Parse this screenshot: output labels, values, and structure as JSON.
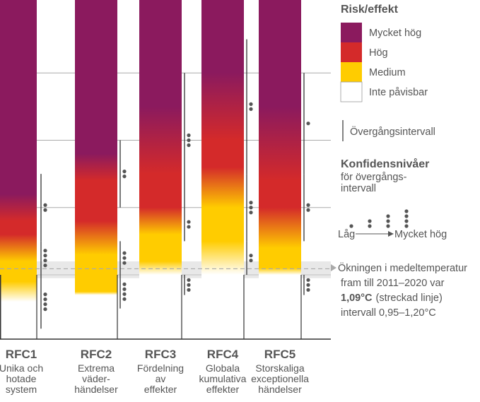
{
  "colors": {
    "very_high": "#8b1a5e",
    "high": "#d42a2a",
    "medium": "#ffcc00",
    "undetectable": "#ffffff",
    "axis": "#333333",
    "grid": "#aaaaaa",
    "text": "#555555"
  },
  "chart_data": {
    "type": "bar",
    "title": "",
    "xlabel": "",
    "ylabel": "",
    "ylim": [
      0,
      5
    ],
    "yunit": "°C",
    "gridlines": [
      1,
      2,
      3,
      4,
      5
    ],
    "legend": {
      "title": "Risk/effekt",
      "levels": [
        {
          "key": "very_high",
          "label": "Mycket hög"
        },
        {
          "key": "high",
          "label": "Hög"
        },
        {
          "key": "medium",
          "label": "Medium"
        },
        {
          "key": "undetectable",
          "label": "Inte påvisbar"
        }
      ],
      "transition_label": "Övergångsintervall",
      "confidence_title": "Konfidensnivåer",
      "confidence_sub1": "för övergångs-",
      "confidence_sub2": "intervall",
      "confidence_low": "Låg",
      "confidence_high": "Mycket hög"
    },
    "observed_warming": {
      "value": 1.09,
      "range": [
        0.95,
        1.2
      ],
      "lines": [
        "Ökningen i medeltemperatur",
        "fram till 2011–2020 var",
        "(streckad linje)",
        "intervall 0,95–1,20°C"
      ],
      "value_text": "1,09°C"
    },
    "categories": [
      {
        "code": "RFC1",
        "label": [
          "Unika och",
          "hotade",
          "system"
        ],
        "stops": [
          {
            "t": 0.6,
            "level": "undetectable"
          },
          {
            "t": 0.9,
            "level": "medium"
          },
          {
            "t": 1.2,
            "level": "medium"
          },
          {
            "t": 1.6,
            "level": "high"
          },
          {
            "t": 1.8,
            "level": "high"
          },
          {
            "t": 2.2,
            "level": "very_high"
          },
          {
            "t": 5.0,
            "level": "very_high"
          }
        ],
        "transitions": [
          {
            "from": 0.2,
            "to": 1.0,
            "dots": 4
          },
          {
            "from": 1.0,
            "to": 1.5,
            "dots": 4
          },
          {
            "from": 1.5,
            "to": 2.5,
            "dots": 2
          }
        ]
      },
      {
        "code": "RFC2",
        "label": [
          "Extrema",
          "väder-",
          "händelser"
        ],
        "stops": [
          {
            "t": 0.7,
            "level": "undetectable"
          },
          {
            "t": 0.75,
            "level": "medium"
          },
          {
            "t": 1.3,
            "level": "medium"
          },
          {
            "t": 1.8,
            "level": "high"
          },
          {
            "t": 2.4,
            "level": "high"
          },
          {
            "t": 2.8,
            "level": "very_high"
          },
          {
            "t": 5.0,
            "level": "very_high"
          }
        ],
        "transitions": [
          {
            "from": 0.5,
            "to": 1.0,
            "dots": 4
          },
          {
            "from": 1.0,
            "to": 1.5,
            "dots": 3
          },
          {
            "from": 2.0,
            "to": 3.0,
            "dots": 2
          }
        ]
      },
      {
        "code": "RFC3",
        "label": [
          "Fördelning",
          "av",
          "effekter"
        ],
        "stops": [
          {
            "t": 1.0,
            "level": "undetectable"
          },
          {
            "t": 1.2,
            "level": "medium"
          },
          {
            "t": 1.6,
            "level": "medium"
          },
          {
            "t": 2.0,
            "level": "high"
          },
          {
            "t": 2.5,
            "level": "high"
          },
          {
            "t": 3.5,
            "level": "very_high"
          },
          {
            "t": 5.0,
            "level": "very_high"
          }
        ],
        "transitions": [
          {
            "from": 0.7,
            "to": 1.0,
            "dots": 3
          },
          {
            "from": 1.5,
            "to": 2.0,
            "dots": 2
          },
          {
            "from": 2.0,
            "to": 4.0,
            "dots": 3
          }
        ]
      },
      {
        "code": "RFC4",
        "label": [
          "Globala",
          "kumulativa",
          "effekter"
        ],
        "stops": [
          {
            "t": 1.0,
            "level": "undetectable"
          },
          {
            "t": 1.5,
            "level": "medium"
          },
          {
            "t": 2.0,
            "level": "medium"
          },
          {
            "t": 2.6,
            "level": "high"
          },
          {
            "t": 3.0,
            "level": "high"
          },
          {
            "t": 4.0,
            "level": "very_high"
          },
          {
            "t": 5.0,
            "level": "very_high"
          }
        ],
        "transitions": [
          {
            "from": 1.0,
            "to": 1.5,
            "dots": 2
          },
          {
            "from": 1.5,
            "to": 2.5,
            "dots": 3
          },
          {
            "from": 2.5,
            "to": 4.5,
            "dots": 2
          }
        ]
      },
      {
        "code": "RFC5",
        "label": [
          "Storskaliga",
          "exceptionella",
          "händelser"
        ],
        "stops": [
          {
            "t": 1.0,
            "level": "undetectable"
          },
          {
            "t": 1.1,
            "level": "medium"
          },
          {
            "t": 1.4,
            "level": "medium"
          },
          {
            "t": 2.0,
            "level": "high"
          },
          {
            "t": 2.4,
            "level": "high"
          },
          {
            "t": 3.5,
            "level": "very_high"
          },
          {
            "t": 5.0,
            "level": "very_high"
          }
        ],
        "transitions": [
          {
            "from": 0.7,
            "to": 1.0,
            "dots": 3
          },
          {
            "from": 1.5,
            "to": 2.5,
            "dots": 2
          },
          {
            "from": 2.5,
            "to": 4.0,
            "dots": 1
          }
        ]
      }
    ]
  }
}
